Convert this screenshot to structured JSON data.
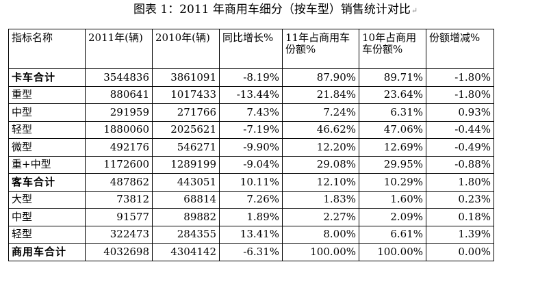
{
  "caption": {
    "text": "图表 1：2011 年商用车细分（按车型）销售统计对比",
    "para_mark": "↵"
  },
  "table": {
    "headers": [
      "指标名称",
      "2011年(辆)",
      "2010年(辆)",
      "同比增长%",
      "11年占商用车份额%",
      "10年占商用车份额%",
      "份额增减%"
    ],
    "rows": [
      {
        "cells": [
          "卡车合计",
          "3544836",
          "3861091",
          "-8.19%",
          "87.90%",
          "89.71%",
          "-1.80%"
        ],
        "total": true
      },
      {
        "cells": [
          "重型",
          "880641",
          "1017433",
          "-13.44%",
          "21.84%",
          "23.64%",
          "-1.80%"
        ],
        "total": false
      },
      {
        "cells": [
          "中型",
          "291959",
          "271766",
          "7.43%",
          "7.24%",
          "6.31%",
          "0.93%"
        ],
        "total": false
      },
      {
        "cells": [
          "轻型",
          "1880060",
          "2025621",
          "-7.19%",
          "46.62%",
          "47.06%",
          "-0.44%"
        ],
        "total": false
      },
      {
        "cells": [
          "微型",
          "492176",
          "546271",
          "-9.90%",
          "12.20%",
          "12.69%",
          "-0.49%"
        ],
        "total": false
      },
      {
        "cells": [
          "重+中型",
          "1172600",
          "1289199",
          "-9.04%",
          "29.08%",
          "29.95%",
          "-0.88%"
        ],
        "total": false
      },
      {
        "cells": [
          "客车合计",
          "487862",
          "443051",
          "10.11%",
          "12.10%",
          "10.29%",
          "1.80%"
        ],
        "total": true
      },
      {
        "cells": [
          "大型",
          "73812",
          "68814",
          "7.26%",
          "1.83%",
          "1.60%",
          "0.23%"
        ],
        "total": false
      },
      {
        "cells": [
          "中型",
          "91577",
          "89882",
          "1.89%",
          "2.27%",
          "2.09%",
          "0.18%"
        ],
        "total": false
      },
      {
        "cells": [
          "轻型",
          "322473",
          "284355",
          "13.41%",
          "8.00%",
          "6.61%",
          "1.39%"
        ],
        "total": false
      },
      {
        "cells": [
          "商用车合计",
          "4032698",
          "4304142",
          "-6.31%",
          "100.00%",
          "100.00%",
          "0.00%"
        ],
        "total": true
      }
    ]
  }
}
